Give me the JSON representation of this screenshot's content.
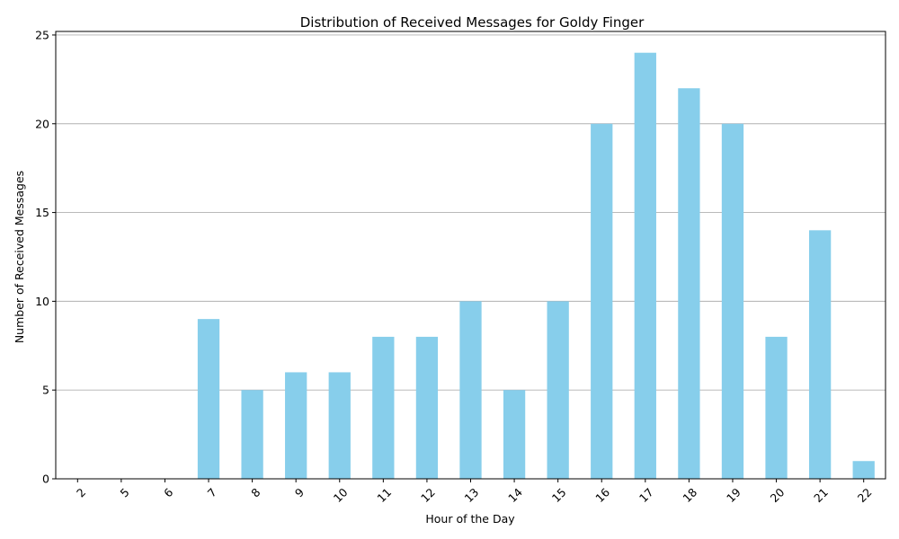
{
  "chart_data": {
    "type": "bar",
    "title": "Distribution of Received Messages for Goldy Finger",
    "xlabel": "Hour of the Day",
    "ylabel": "Number of Received Messages",
    "categories": [
      "2",
      "5",
      "6",
      "7",
      "8",
      "9",
      "10",
      "11",
      "12",
      "13",
      "14",
      "15",
      "16",
      "17",
      "18",
      "19",
      "20",
      "21",
      "22"
    ],
    "values": [
      0,
      0,
      0,
      9,
      5,
      6,
      6,
      8,
      8,
      10,
      5,
      10,
      20,
      24,
      22,
      20,
      8,
      14,
      1
    ],
    "ylim": [
      0,
      25.2
    ],
    "yticks": [
      0,
      5,
      10,
      15,
      20,
      25
    ],
    "grid": "y-major",
    "x_tick_rotation": 45,
    "bar_color": "#87ceeb",
    "grid_color": "#b0b0b0",
    "axis_color": "#000000"
  }
}
